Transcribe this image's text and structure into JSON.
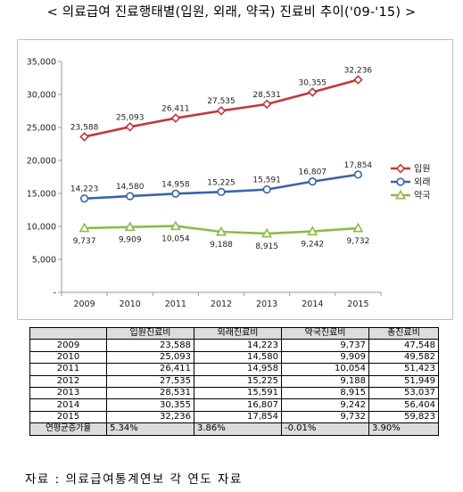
{
  "title": "< 의료급여 진료행태별(입원, 외래, 약국) 진료비 추이('09-'15) >",
  "source": "자료 : 의료급여통계연보 각 연도 자료",
  "colors": {
    "inpatient": "#c0393b",
    "outpatient": "#3b64a8",
    "pharmacy": "#8fba4a"
  },
  "chart_data": {
    "type": "line",
    "categories": [
      "2009",
      "2010",
      "2011",
      "2012",
      "2013",
      "2014",
      "2015"
    ],
    "y_ticks": [
      "-",
      "5,000",
      "10,000",
      "15,000",
      "20,000",
      "25,000",
      "30,000",
      "35,000"
    ],
    "ylim": [
      0,
      35000
    ],
    "grid": false,
    "legend_position": "right",
    "series": [
      {
        "name": "입원",
        "marker": "diamond",
        "values": [
          23588,
          25093,
          26411,
          27535,
          28531,
          30355,
          32236
        ],
        "labels": [
          "23,588",
          "25,093",
          "26,411",
          "27,535",
          "28,531",
          "30,355",
          "32,236"
        ]
      },
      {
        "name": "외래",
        "marker": "circle",
        "values": [
          14223,
          14580,
          14958,
          15225,
          15591,
          16807,
          17854
        ],
        "labels": [
          "14,223",
          "14,580",
          "14,958",
          "15,225",
          "15,591",
          "16,807",
          "17,854"
        ]
      },
      {
        "name": "약국",
        "marker": "triangle",
        "values": [
          9737,
          9909,
          10054,
          9188,
          8915,
          9242,
          9732
        ],
        "labels": [
          "9,737",
          "9,909",
          "10,054",
          "9,188",
          "8,915",
          "9,242",
          "9,732"
        ]
      }
    ]
  },
  "table": {
    "headers": [
      "",
      "입원진료비",
      "외래진료비",
      "약국진료비",
      "총진료비"
    ],
    "rows": [
      [
        "2009",
        "23,588",
        "14,223",
        "9,737",
        "47,548"
      ],
      [
        "2010",
        "25,093",
        "14,580",
        "9,909",
        "49,582"
      ],
      [
        "2011",
        "26,411",
        "14,958",
        "10,054",
        "51,423"
      ],
      [
        "2012",
        "27,535",
        "15,225",
        "9,188",
        "51,949"
      ],
      [
        "2013",
        "28,531",
        "15,591",
        "8,915",
        "53,037"
      ],
      [
        "2014",
        "30,355",
        "16,807",
        "9,242",
        "56,404"
      ],
      [
        "2015",
        "32,236",
        "17,854",
        "9,732",
        "59,823"
      ]
    ],
    "growth": [
      "연평균증가율",
      "5.34%",
      "3.86%",
      "-0.01%",
      "3.90%"
    ]
  }
}
